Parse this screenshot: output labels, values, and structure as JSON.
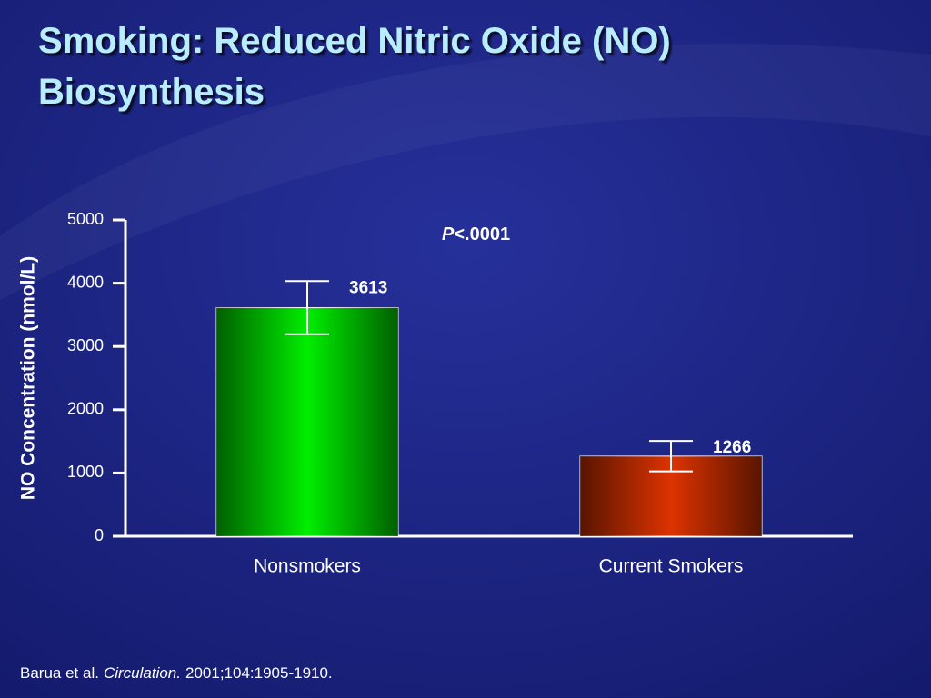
{
  "slide": {
    "title_lines": [
      "Smoking: Reduced Nitric Oxide (NO)",
      "Biosynthesis"
    ],
    "citation": {
      "authors": "Barua et al.",
      "journal": "Circulation.",
      "details": "2001;104:1905-1910."
    }
  },
  "chart_data": {
    "type": "bar",
    "y_label": "NO Concentration (nmol/L)",
    "categories": [
      "Nonsmokers",
      "Current Smokers"
    ],
    "values": [
      3613,
      1266
    ],
    "errors": [
      420,
      240
    ],
    "colors": [
      "#00ee00",
      "#dd3300"
    ],
    "annotation": {
      "italic": "P",
      "text": "<.0001"
    },
    "ylim": [
      0,
      5000
    ],
    "yticks": [
      0,
      1000,
      2000,
      3000,
      4000,
      5000
    ]
  }
}
